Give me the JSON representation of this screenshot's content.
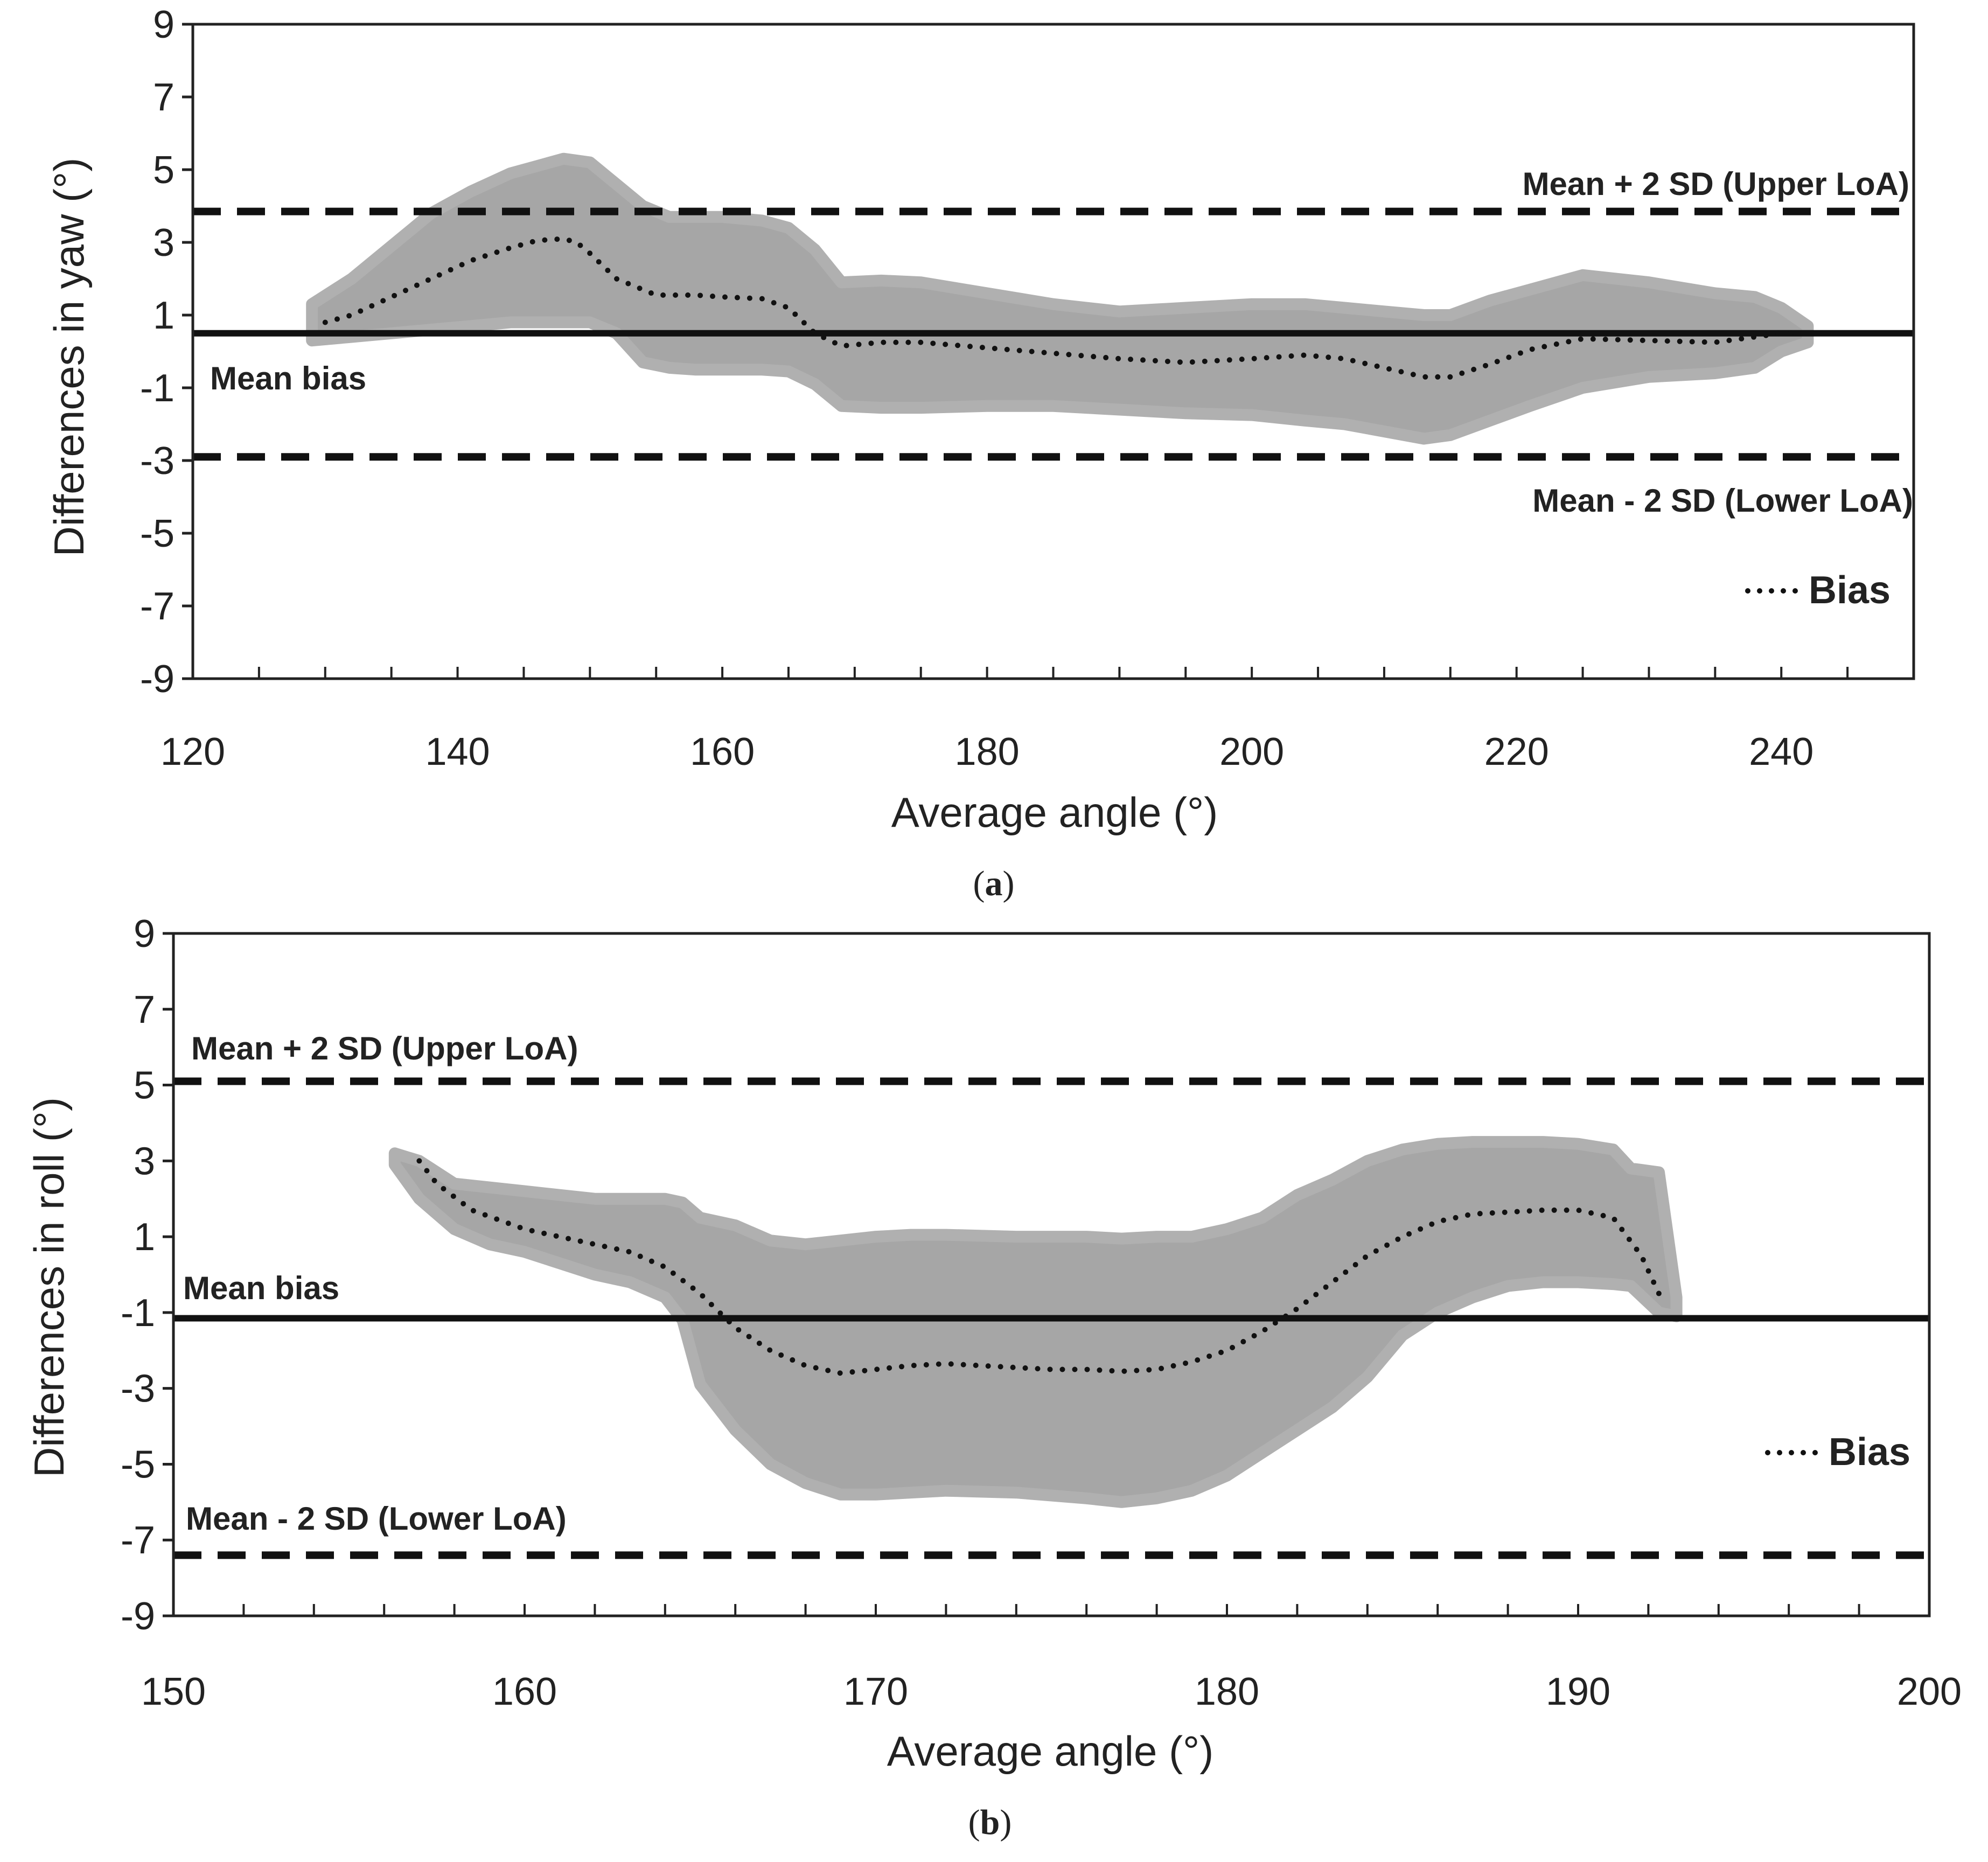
{
  "chart_data": [
    {
      "type": "line",
      "panel": "(a)",
      "panel_letter": "a",
      "xlabel": "Average angle (°)",
      "ylabel": "Differences in yaw (°)",
      "xlim": [
        120,
        250
      ],
      "ylim": [
        -9,
        9
      ],
      "x_ticks": [
        120,
        140,
        160,
        180,
        200,
        220,
        240
      ],
      "y_ticks": [
        9,
        7,
        5,
        3,
        1,
        -1,
        -3,
        -5,
        -7,
        -9
      ],
      "reference_lines": {
        "upper_loa": {
          "value": 3.85,
          "label": "Mean + 2 SD (Upper LoA)"
        },
        "mean_bias": {
          "value": 0.5,
          "label": "Mean bias"
        },
        "lower_loa": {
          "value": -2.9,
          "label": "Mean - 2 SD (Lower LoA)"
        }
      },
      "legend": {
        "label": "Bias",
        "position": "bottom-right"
      },
      "bias_series": {
        "x": [
          130,
          132,
          135,
          138,
          141,
          144,
          146,
          148,
          149,
          150,
          152,
          155,
          158,
          160,
          163,
          165,
          167,
          169,
          172,
          175,
          180,
          185,
          190,
          195,
          200,
          204,
          207,
          210,
          213,
          215,
          218,
          221,
          225,
          230,
          235,
          238,
          240,
          241
        ],
        "y": [
          0.8,
          1.0,
          1.5,
          2.0,
          2.5,
          2.85,
          3.05,
          3.1,
          3.0,
          2.7,
          2.0,
          1.55,
          1.55,
          1.5,
          1.45,
          1.2,
          0.5,
          0.15,
          0.25,
          0.25,
          0.1,
          -0.05,
          -0.2,
          -0.3,
          -0.2,
          -0.1,
          -0.2,
          -0.45,
          -0.7,
          -0.7,
          -0.35,
          0.05,
          0.35,
          0.3,
          0.25,
          0.4,
          0.5,
          0.5
        ]
      },
      "band": {
        "x": [
          129,
          132,
          135,
          138,
          141,
          144,
          146,
          148,
          150,
          152,
          154,
          156,
          158,
          160,
          163,
          165,
          167,
          169,
          172,
          175,
          180,
          185,
          190,
          195,
          200,
          204,
          207,
          210,
          213,
          215,
          218,
          221,
          225,
          230,
          235,
          238,
          240,
          242
        ],
        "upper": [
          1.3,
          2.0,
          2.9,
          3.8,
          4.4,
          4.9,
          5.1,
          5.3,
          5.2,
          4.6,
          4.0,
          3.7,
          3.7,
          3.7,
          3.6,
          3.4,
          2.8,
          1.9,
          1.95,
          1.9,
          1.6,
          1.3,
          1.1,
          1.2,
          1.3,
          1.3,
          1.2,
          1.1,
          1.0,
          1.0,
          1.4,
          1.7,
          2.1,
          1.9,
          1.6,
          1.5,
          1.2,
          0.7
        ],
        "lower": [
          0.3,
          0.4,
          0.5,
          0.6,
          0.7,
          0.8,
          0.8,
          0.8,
          0.8,
          0.5,
          -0.3,
          -0.45,
          -0.5,
          -0.5,
          -0.5,
          -0.55,
          -0.9,
          -1.5,
          -1.55,
          -1.55,
          -1.5,
          -1.5,
          -1.6,
          -1.7,
          -1.75,
          -1.9,
          -2.0,
          -2.2,
          -2.4,
          -2.3,
          -1.9,
          -1.5,
          -1.0,
          -0.7,
          -0.6,
          -0.45,
          0.0,
          0.25
        ]
      }
    },
    {
      "type": "line",
      "panel": "(b)",
      "panel_letter": "b",
      "xlabel": "Average angle (°)",
      "ylabel": "Differences in roll (°)",
      "xlim": [
        150,
        200
      ],
      "ylim": [
        -9,
        9
      ],
      "x_ticks": [
        150,
        160,
        170,
        180,
        190,
        200
      ],
      "y_ticks": [
        9,
        7,
        5,
        3,
        1,
        -1,
        -3,
        -5,
        -7,
        -9
      ],
      "reference_lines": {
        "upper_loa": {
          "value": 5.1,
          "label": "Mean + 2 SD (Upper LoA)"
        },
        "mean_bias": {
          "value": -1.15,
          "label": "Mean bias"
        },
        "lower_loa": {
          "value": -7.4,
          "label": "Mean - 2 SD (Lower LoA)"
        }
      },
      "legend": {
        "label": "Bias",
        "position": "middle-right"
      },
      "bias_series": {
        "x": [
          157,
          157.5,
          158.5,
          160,
          161.5,
          163,
          164,
          165,
          166,
          167,
          168,
          169,
          170,
          171,
          172,
          173,
          174,
          175,
          176,
          177,
          178,
          179,
          180,
          181,
          182,
          183,
          184,
          185,
          186,
          187,
          188,
          189,
          190,
          191,
          191.8,
          192.3
        ],
        "y": [
          3.0,
          2.4,
          1.7,
          1.2,
          0.9,
          0.6,
          0.2,
          -0.5,
          -1.4,
          -2.0,
          -2.4,
          -2.6,
          -2.5,
          -2.4,
          -2.35,
          -2.4,
          -2.45,
          -2.5,
          -2.5,
          -2.55,
          -2.5,
          -2.3,
          -2.0,
          -1.5,
          -0.9,
          -0.2,
          0.5,
          1.0,
          1.4,
          1.6,
          1.65,
          1.7,
          1.7,
          1.5,
          0.5,
          -0.5
        ]
      },
      "band": {
        "x": [
          156.3,
          157,
          158,
          159,
          160,
          161,
          162,
          163,
          164,
          164.5,
          165,
          166,
          167,
          168,
          169,
          170,
          171,
          172,
          174,
          176,
          177,
          178,
          179,
          180,
          181,
          182,
          183,
          184,
          185,
          186,
          187,
          188,
          189,
          190,
          191,
          191.5,
          192.3,
          192.8
        ],
        "upper": [
          3.2,
          3.0,
          2.4,
          2.3,
          2.2,
          2.1,
          2.0,
          2.0,
          2.0,
          1.9,
          1.5,
          1.3,
          0.9,
          0.8,
          0.9,
          1.0,
          1.05,
          1.05,
          1.0,
          1.0,
          0.95,
          1.0,
          1.0,
          1.2,
          1.5,
          2.1,
          2.5,
          3.0,
          3.3,
          3.45,
          3.5,
          3.5,
          3.5,
          3.45,
          3.3,
          2.8,
          2.7,
          -0.6
        ],
        "lower": [
          2.9,
          2.0,
          1.2,
          0.8,
          0.6,
          0.3,
          0.0,
          -0.2,
          -0.6,
          -1.2,
          -2.9,
          -4.1,
          -5.0,
          -5.5,
          -5.8,
          -5.8,
          -5.75,
          -5.7,
          -5.75,
          -5.9,
          -6.0,
          -5.9,
          -5.7,
          -5.3,
          -4.7,
          -4.1,
          -3.5,
          -2.7,
          -1.6,
          -1.0,
          -0.6,
          -0.3,
          -0.2,
          -0.2,
          -0.25,
          -0.3,
          -1.0,
          -1.1
        ]
      }
    }
  ]
}
